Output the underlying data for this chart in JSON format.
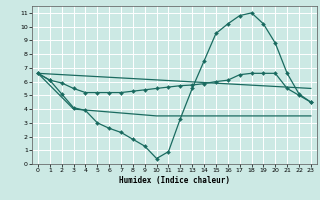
{
  "xlabel": "Humidex (Indice chaleur)",
  "background_color": "#cce9e4",
  "grid_color": "#ffffff",
  "line_color": "#1a6b60",
  "xlim": [
    -0.5,
    23.5
  ],
  "ylim": [
    0,
    11.5
  ],
  "xticks": [
    0,
    1,
    2,
    3,
    4,
    5,
    6,
    7,
    8,
    9,
    10,
    11,
    12,
    13,
    14,
    15,
    16,
    17,
    18,
    19,
    20,
    21,
    22,
    23
  ],
  "yticks": [
    0,
    1,
    2,
    3,
    4,
    5,
    6,
    7,
    8,
    9,
    10,
    11
  ],
  "series": [
    {
      "x": [
        0,
        1,
        2,
        3,
        4,
        5,
        6,
        7,
        8,
        9,
        10,
        11,
        12,
        13,
        14,
        15,
        16,
        17,
        18,
        19,
        20,
        21,
        22,
        23
      ],
      "y": [
        6.6,
        6.1,
        5.9,
        5.5,
        5.2,
        5.2,
        5.2,
        5.2,
        5.3,
        5.4,
        5.5,
        5.6,
        5.7,
        5.75,
        5.85,
        6.0,
        6.1,
        6.5,
        6.6,
        6.6,
        6.6,
        5.5,
        5.0,
        4.5
      ],
      "marker": true,
      "lw": 0.9
    },
    {
      "x": [
        0,
        1,
        2,
        3,
        4,
        5,
        6,
        7,
        8,
        9,
        10,
        11,
        12,
        13,
        14,
        15,
        16,
        17,
        18,
        19,
        20,
        21,
        22,
        23
      ],
      "y": [
        6.6,
        6.1,
        5.1,
        4.1,
        3.9,
        3.0,
        2.6,
        2.3,
        1.8,
        1.3,
        0.4,
        0.9,
        3.3,
        5.5,
        7.5,
        9.5,
        10.2,
        10.8,
        11.0,
        10.2,
        8.8,
        6.6,
        5.1,
        4.5
      ],
      "marker": true,
      "lw": 0.9
    },
    {
      "x": [
        0,
        3,
        10,
        23
      ],
      "y": [
        6.6,
        4.0,
        3.5,
        3.5
      ],
      "marker": false,
      "lw": 0.9
    },
    {
      "x": [
        0,
        23
      ],
      "y": [
        6.6,
        5.5
      ],
      "marker": false,
      "lw": 0.9
    }
  ]
}
